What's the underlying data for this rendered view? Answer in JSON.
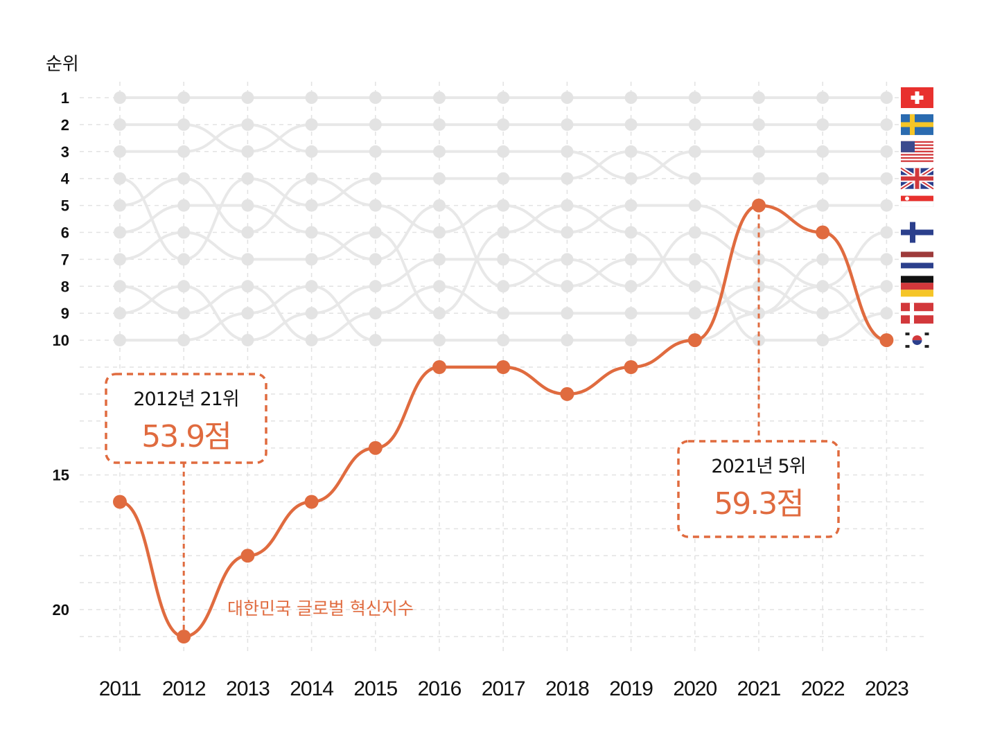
{
  "colors": {
    "accent": "#E06B3F",
    "background_lines": "#E8E8E8",
    "grid": "#E2E2E2"
  },
  "chart_data": {
    "type": "line",
    "ylabel": "순위",
    "y_reversed": true,
    "ylim": [
      1,
      21
    ],
    "y_ticks": [
      1,
      2,
      3,
      4,
      5,
      6,
      7,
      8,
      9,
      10,
      15,
      20
    ],
    "categories": [
      "2011",
      "2012",
      "2013",
      "2014",
      "2015",
      "2016",
      "2017",
      "2018",
      "2019",
      "2020",
      "2021",
      "2022",
      "2023"
    ],
    "series": [
      {
        "name": "대한민국 글로벌 혁신지수",
        "values": [
          16,
          21,
          18,
          16,
          14,
          11,
          11,
          12,
          11,
          10,
          5,
          6,
          10
        ]
      }
    ],
    "background_series_count": 10,
    "background_series": [
      [
        1,
        1,
        1,
        1,
        1,
        1,
        1,
        1,
        1,
        1,
        1,
        1,
        1
      ],
      [
        2,
        2,
        3,
        2,
        2,
        2,
        2,
        2,
        2,
        2,
        2,
        2,
        2
      ],
      [
        3,
        3,
        2,
        3,
        3,
        3,
        3,
        3,
        4,
        3,
        3,
        3,
        3
      ],
      [
        4,
        7,
        4,
        5,
        4,
        4,
        4,
        4,
        3,
        4,
        4,
        4,
        4
      ],
      [
        5,
        4,
        6,
        4,
        5,
        6,
        5,
        6,
        5,
        5,
        6,
        5,
        5
      ],
      [
        6,
        5,
        5,
        6,
        7,
        5,
        8,
        7,
        8,
        6,
        7,
        8,
        6
      ],
      [
        7,
        6,
        7,
        7,
        6,
        9,
        6,
        5,
        6,
        8,
        9,
        7,
        7
      ],
      [
        8,
        9,
        8,
        10,
        9,
        8,
        9,
        9,
        9,
        9,
        8,
        9,
        8
      ],
      [
        9,
        8,
        10,
        9,
        8,
        7,
        7,
        8,
        7,
        7,
        10,
        10,
        9
      ],
      [
        10,
        10,
        9,
        8,
        10,
        10,
        10,
        10,
        10,
        10,
        9,
        8,
        10
      ]
    ],
    "flags_top_to_bottom": [
      "switzerland",
      "sweden",
      "united-states",
      "united-kingdom",
      "singapore",
      "finland",
      "netherlands",
      "germany",
      "denmark",
      "south-korea"
    ],
    "annotations": [
      {
        "year": "2012",
        "title": "2012년 21위",
        "value": "53.9점"
      },
      {
        "year": "2021",
        "title": "2021년 5위",
        "value": "59.3점"
      }
    ]
  }
}
